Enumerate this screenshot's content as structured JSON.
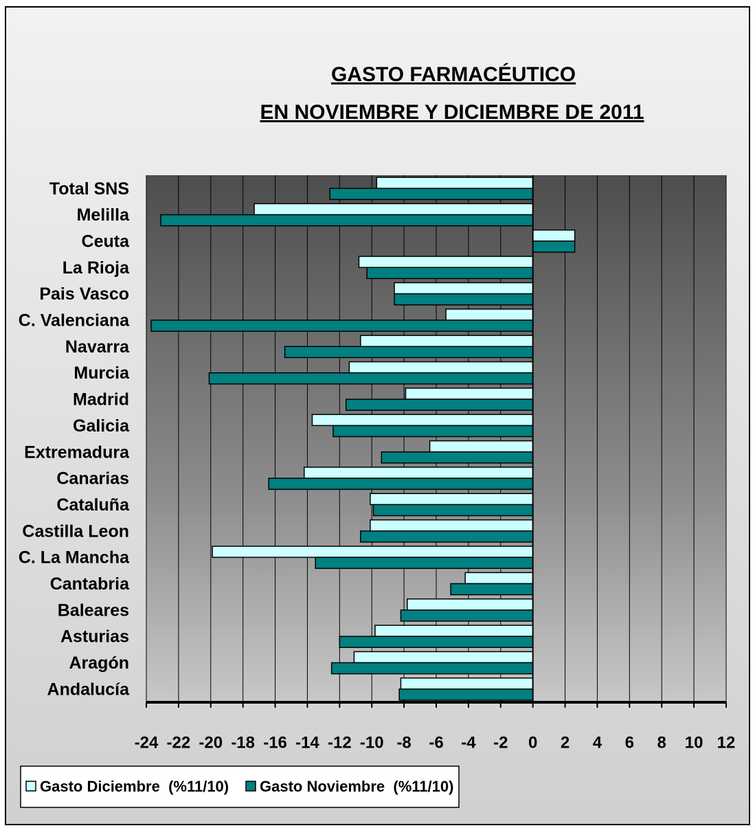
{
  "chart_data": {
    "type": "barh",
    "title": [
      "GASTO FARMACÉUTICO",
      "EN NOVIEMBRE Y DICIEMBRE DE 2011"
    ],
    "categories": [
      "Total SNS",
      "Melilla",
      "Ceuta",
      "La Rioja",
      "Pais Vasco",
      "C. Valenciana",
      "Navarra",
      "Murcia",
      "Madrid",
      "Galicia",
      "Extremadura",
      "Canarias",
      "Cataluña",
      "Castilla Leon",
      "C. La Mancha",
      "Cantabria",
      "Baleares",
      "Asturias",
      "Aragón",
      "Andalucía"
    ],
    "series": [
      {
        "name": "Gasto Diciembre  (%11/10)",
        "color": "#ccffff",
        "values": [
          -9.7,
          -17.3,
          2.6,
          -10.8,
          -8.6,
          -5.4,
          -10.7,
          -11.4,
          -7.9,
          -13.7,
          -6.4,
          -14.2,
          -10.1,
          -10.1,
          -19.9,
          -4.2,
          -7.8,
          -9.8,
          -11.1,
          -8.2
        ]
      },
      {
        "name": "Gasto Noviembre  (%11/10)",
        "color": "#008080",
        "values": [
          -12.6,
          -23.1,
          2.6,
          -10.3,
          -8.6,
          -23.7,
          -15.4,
          -20.1,
          -11.6,
          -12.4,
          -9.4,
          -16.4,
          -9.9,
          -10.7,
          -13.5,
          -5.1,
          -8.2,
          -12.0,
          -12.5,
          -8.3
        ]
      }
    ],
    "xlim": [
      -24,
      12
    ],
    "xticks": [
      -24,
      -22,
      -20,
      -18,
      -16,
      -14,
      -12,
      -10,
      -8,
      -6,
      -4,
      -2,
      0,
      2,
      4,
      6,
      8,
      10,
      12
    ],
    "grid": true,
    "legend": "bottom-left"
  }
}
